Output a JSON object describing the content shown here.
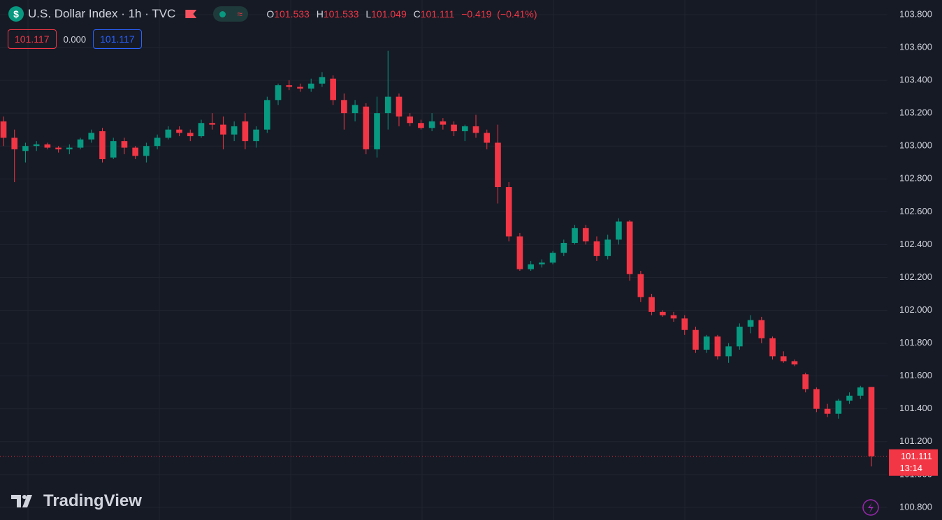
{
  "chart_data": {
    "type": "candlestick",
    "title": "U.S. Dollar Index · 1h · TVC",
    "legend": {
      "open": {
        "label": "O",
        "value": 101.533
      },
      "high": {
        "label": "H",
        "value": 101.533
      },
      "low": {
        "label": "L",
        "value": 101.049
      },
      "close": {
        "label": "C",
        "value": 101.111
      },
      "change": {
        "value": -0.419,
        "label": "−0.419"
      },
      "change_percent": {
        "value": -0.41,
        "label": "(−0.41%)"
      }
    },
    "sell": 101.117,
    "spread": {
      "value": 0,
      "label": "0.000"
    },
    "buy": 101.117,
    "last_price": 101.111,
    "countdown": "13:14",
    "brand": "TradingView",
    "up_color": "#089981",
    "down_color": "#f23645",
    "grid": true,
    "ylim": [
      100.723,
      103.889
    ],
    "yticks": [
      {
        "value": 103.8,
        "label": "103.800"
      },
      {
        "value": 103.6,
        "label": "103.600"
      },
      {
        "value": 103.4,
        "label": "103.400"
      },
      {
        "value": 103.2,
        "label": "103.200"
      },
      {
        "value": 103,
        "label": "103.000"
      },
      {
        "value": 102.8,
        "label": "102.800"
      },
      {
        "value": 102.6,
        "label": "102.600"
      },
      {
        "value": 102.4,
        "label": "102.400"
      },
      {
        "value": 102.2,
        "label": "102.200"
      },
      {
        "value": 102,
        "label": "102.000"
      },
      {
        "value": 101.8,
        "label": "101.800"
      },
      {
        "value": 101.6,
        "label": "101.600"
      },
      {
        "value": 101.4,
        "label": "101.400"
      },
      {
        "value": 101.2,
        "label": "101.200"
      },
      {
        "value": 101,
        "label": "101.000"
      },
      {
        "value": 100.8,
        "label": "100.800"
      }
    ],
    "open": [
      103.15,
      103.05,
      102.97,
      103.0,
      103.01,
      102.99,
      102.98,
      102.99,
      103.04,
      103.09,
      102.93,
      103.03,
      102.99,
      102.94,
      103.0,
      103.05,
      103.1,
      103.08,
      103.06,
      103.14,
      103.13,
      103.07,
      103.15,
      103.03,
      103.1,
      103.28,
      103.37,
      103.36,
      103.35,
      103.38,
      103.41,
      103.28,
      103.2,
      103.24,
      102.98,
      103.2,
      103.3,
      103.18,
      103.14,
      103.11,
      103.15,
      103.13,
      103.09,
      103.12,
      103.08,
      103.02,
      102.75,
      102.45,
      102.25,
      102.28,
      102.29,
      102.35,
      102.41,
      102.5,
      102.42,
      102.33,
      102.43,
      102.54,
      102.22,
      102.08,
      101.99,
      101.97,
      101.95,
      101.88,
      101.76,
      101.84,
      101.72,
      101.78,
      101.9,
      101.94,
      101.83,
      101.72,
      101.69,
      101.61,
      101.52,
      101.4,
      101.37,
      101.45,
      101.48,
      101.533
    ],
    "high": [
      103.18,
      103.1,
      103.02,
      103.03,
      103.02,
      103.0,
      103.01,
      103.05,
      103.1,
      103.11,
      103.05,
      103.05,
      103.0,
      103.02,
      103.07,
      103.12,
      103.12,
      103.1,
      103.16,
      103.2,
      103.18,
      103.15,
      103.2,
      103.12,
      103.3,
      103.38,
      103.4,
      103.38,
      103.41,
      103.45,
      103.43,
      103.32,
      103.28,
      103.26,
      103.3,
      103.58,
      103.32,
      103.2,
      103.16,
      103.2,
      103.17,
      103.15,
      103.13,
      103.19,
      103.1,
      103.13,
      102.78,
      102.47,
      102.3,
      102.31,
      102.36,
      102.43,
      102.52,
      102.52,
      102.45,
      102.46,
      102.56,
      102.55,
      102.24,
      102.1,
      102.0,
      101.99,
      101.97,
      101.9,
      101.85,
      101.85,
      101.8,
      101.92,
      101.97,
      101.96,
      101.84,
      101.75,
      101.7,
      101.62,
      101.53,
      101.43,
      101.46,
      101.5,
      101.54,
      101.533
    ],
    "low": [
      103.0,
      102.78,
      102.9,
      102.97,
      102.98,
      102.96,
      102.95,
      102.98,
      103.02,
      102.9,
      102.92,
      102.95,
      102.92,
      102.9,
      102.98,
      103.04,
      103.06,
      103.03,
      103.05,
      103.1,
      102.98,
      103.03,
      102.98,
      102.99,
      103.08,
      103.25,
      103.34,
      103.33,
      103.33,
      103.36,
      103.25,
      103.1,
      103.15,
      102.95,
      102.93,
      103.1,
      103.12,
      103.12,
      103.1,
      103.09,
      103.1,
      103.06,
      103.03,
      103.05,
      102.98,
      102.65,
      102.42,
      102.24,
      102.24,
      102.26,
      102.28,
      102.33,
      102.4,
      102.4,
      102.3,
      102.31,
      102.4,
      102.18,
      102.05,
      101.97,
      101.96,
      101.93,
      101.85,
      101.74,
      101.74,
      101.7,
      101.68,
      101.76,
      101.86,
      101.8,
      101.7,
      101.68,
      101.66,
      101.5,
      101.38,
      101.35,
      101.34,
      101.43,
      101.46,
      101.049
    ],
    "close": [
      103.05,
      102.98,
      103.0,
      103.01,
      102.99,
      102.98,
      102.99,
      103.04,
      103.08,
      102.92,
      103.03,
      102.99,
      102.94,
      103.0,
      103.05,
      103.1,
      103.08,
      103.06,
      103.14,
      103.13,
      103.07,
      103.12,
      103.03,
      103.1,
      103.28,
      103.37,
      103.36,
      103.35,
      103.38,
      103.42,
      103.28,
      103.2,
      103.25,
      102.98,
      103.2,
      103.3,
      103.18,
      103.14,
      103.11,
      103.15,
      103.13,
      103.09,
      103.12,
      103.08,
      103.02,
      102.75,
      102.45,
      102.25,
      102.28,
      102.29,
      102.35,
      102.41,
      102.5,
      102.42,
      102.33,
      102.43,
      102.54,
      102.22,
      102.08,
      101.99,
      101.97,
      101.95,
      101.88,
      101.76,
      101.84,
      101.72,
      101.78,
      101.9,
      101.94,
      101.83,
      101.72,
      101.69,
      101.67,
      101.52,
      101.4,
      101.37,
      101.45,
      101.48,
      101.53,
      101.111
    ]
  }
}
